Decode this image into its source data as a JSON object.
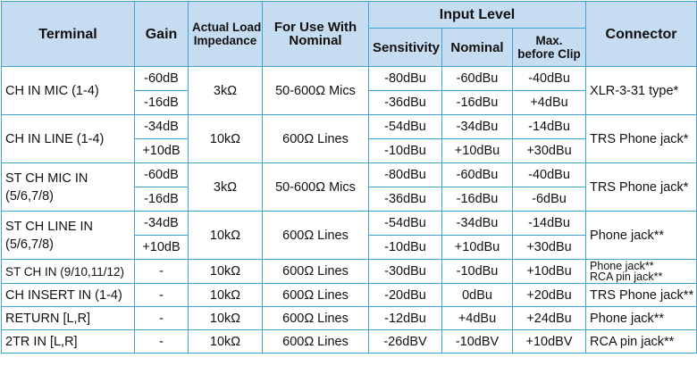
{
  "header": {
    "terminal": "Terminal",
    "gain": "Gain",
    "impedance_line1": "Actual Load",
    "impedance_line2": "Impedance",
    "for_use_line1": "For Use With",
    "for_use_line2": "Nominal",
    "input_level": "Input Level",
    "sensitivity": "Sensitivity",
    "nominal": "Nominal",
    "max_line1": "Max.",
    "max_line2": "before Clip",
    "connector": "Connector"
  },
  "rows": [
    {
      "terminal": "CH IN MIC (1-4)",
      "impedance": "3kΩ",
      "for_use": "50-600Ω Mics",
      "connector": "XLR-3-31 type*",
      "levels": [
        {
          "gain": "-60dB",
          "sensitivity": "-80dBu",
          "nominal": "-60dBu",
          "max": "-40dBu"
        },
        {
          "gain": "-16dB",
          "sensitivity": "-36dBu",
          "nominal": "-16dBu",
          "max": "+4dBu"
        }
      ]
    },
    {
      "terminal": "CH IN LINE (1-4)",
      "impedance": "10kΩ",
      "for_use": "600Ω Lines",
      "connector": "TRS Phone jack*",
      "levels": [
        {
          "gain": "-34dB",
          "sensitivity": "-54dBu",
          "nominal": "-34dBu",
          "max": "-14dBu"
        },
        {
          "gain": "+10dB",
          "sensitivity": "-10dBu",
          "nominal": "+10dBu",
          "max": "+30dBu"
        }
      ]
    },
    {
      "terminal_line1": "ST CH MIC IN",
      "terminal_line2": "(5/6,7/8)",
      "impedance": "3kΩ",
      "for_use": "50-600Ω Mics",
      "connector": "TRS Phone jack*",
      "levels": [
        {
          "gain": "-60dB",
          "sensitivity": "-80dBu",
          "nominal": "-60dBu",
          "max": "-40dBu"
        },
        {
          "gain": "-16dB",
          "sensitivity": "-36dBu",
          "nominal": "-16dBu",
          "max": "-6dBu"
        }
      ]
    },
    {
      "terminal_line1": "ST CH LINE IN",
      "terminal_line2": "(5/6,7/8)",
      "impedance": "10kΩ",
      "for_use": "600Ω Lines",
      "connector": "Phone jack**",
      "levels": [
        {
          "gain": "-34dB",
          "sensitivity": "-54dBu",
          "nominal": "-34dBu",
          "max": "-14dBu"
        },
        {
          "gain": "+10dB",
          "sensitivity": "-10dBu",
          "nominal": "+10dBu",
          "max": "+30dBu"
        }
      ]
    },
    {
      "terminal": "ST CH IN (9/10,11/12)",
      "gain": "-",
      "impedance": "10kΩ",
      "for_use": "600Ω Lines",
      "sensitivity": "-30dBu",
      "nominal": "-10dBu",
      "max": "+10dBu",
      "connector_line1": "Phone jack**",
      "connector_line2": "RCA pin jack**"
    },
    {
      "terminal": "CH INSERT IN (1-4)",
      "gain": "-",
      "impedance": "10kΩ",
      "for_use": "600Ω Lines",
      "sensitivity": "-20dBu",
      "nominal": "0dBu",
      "max": "+20dBu",
      "connector": "TRS Phone jack**"
    },
    {
      "terminal": "RETURN [L,R]",
      "gain": "-",
      "impedance": "10kΩ",
      "for_use": "600Ω Lines",
      "sensitivity": "-12dBu",
      "nominal": "+4dBu",
      "max": "+24dBu",
      "connector": "Phone jack**"
    },
    {
      "terminal": "2TR IN [L,R]",
      "gain": "-",
      "impedance": "10kΩ",
      "for_use": "600Ω Lines",
      "sensitivity": "-26dBV",
      "nominal": "-10dBV",
      "max": "+10dBV",
      "connector": "RCA pin jack**"
    }
  ]
}
